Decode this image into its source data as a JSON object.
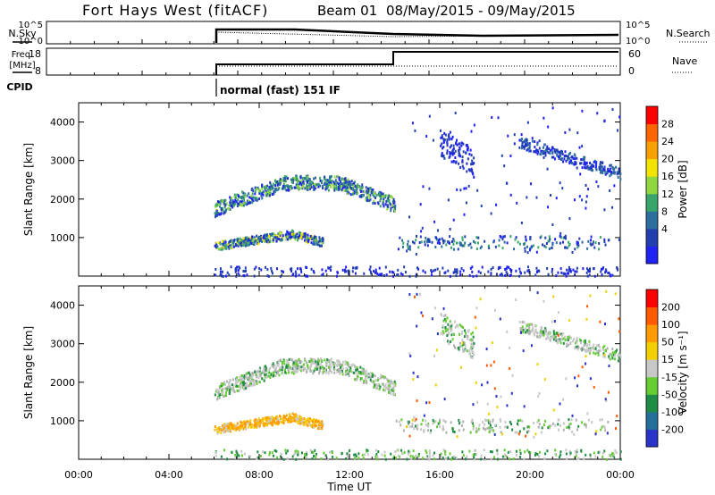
{
  "header": {
    "title": "Fort Hays West (fitACF)",
    "beam_label": "Beam 01",
    "date_range": "08/May/2015 - 09/May/2015"
  },
  "top_panels": {
    "nsky_label": "N.Sky",
    "nsky_ticks": [
      "10^5",
      "10^0"
    ],
    "nsearch_label": "N.Search",
    "nsearch_ticks": [
      "10^5",
      "10^0"
    ],
    "freq_label_line1": "Freq.",
    "freq_label_line2": "[MHz]",
    "freq_ticks": [
      "18",
      "8"
    ],
    "nave_label": "Nave",
    "nave_ticks": [
      "60",
      "0"
    ],
    "cpid_label": "CPID",
    "cpid_text": "normal (fast) 151 IF"
  },
  "chart_data": [
    {
      "type": "heatmap",
      "name": "power",
      "ylabel": "Slant Range [km]",
      "ylim": [
        0,
        4500
      ],
      "yticks": [
        "1000",
        "2000",
        "3000",
        "4000"
      ],
      "colorbar_label": "Power [dB]",
      "colorbar_ticks": [
        "28",
        "24",
        "20",
        "16",
        "12",
        "8",
        "4"
      ],
      "colorbar_colors": [
        "#1f22f2",
        "#223fb0",
        "#2c6e9e",
        "#3aa56a",
        "#8fd640",
        "#f2e400",
        "#f7a000",
        "#ff6600",
        "#ff0000"
      ],
      "data_extent_hours": [
        6.0,
        24.0
      ]
    },
    {
      "type": "heatmap",
      "name": "velocity",
      "ylabel": "Slant Range [km]",
      "ylim": [
        0,
        4500
      ],
      "yticks": [
        "1000",
        "2000",
        "3000",
        "4000"
      ],
      "colorbar_label": "Velocity [m s⁻¹]",
      "colorbar_ticks": [
        "200",
        "100",
        "50",
        "15",
        "-15",
        "-50",
        "-100",
        "-200"
      ],
      "colorbar_colors": [
        "#2a33c8",
        "#24709a",
        "#1e8c44",
        "#66cc33",
        "#c8c8c8",
        "#f2d000",
        "#ff9a00",
        "#ff5a00",
        "#ff0000"
      ],
      "data_extent_hours": [
        6.0,
        24.0
      ]
    }
  ],
  "x_axis": {
    "xlabel": "Time UT",
    "xlim": [
      0,
      24
    ],
    "ticks": [
      "00:00",
      "04:00",
      "08:00",
      "12:00",
      "16:00",
      "20:00",
      "00:00"
    ]
  }
}
